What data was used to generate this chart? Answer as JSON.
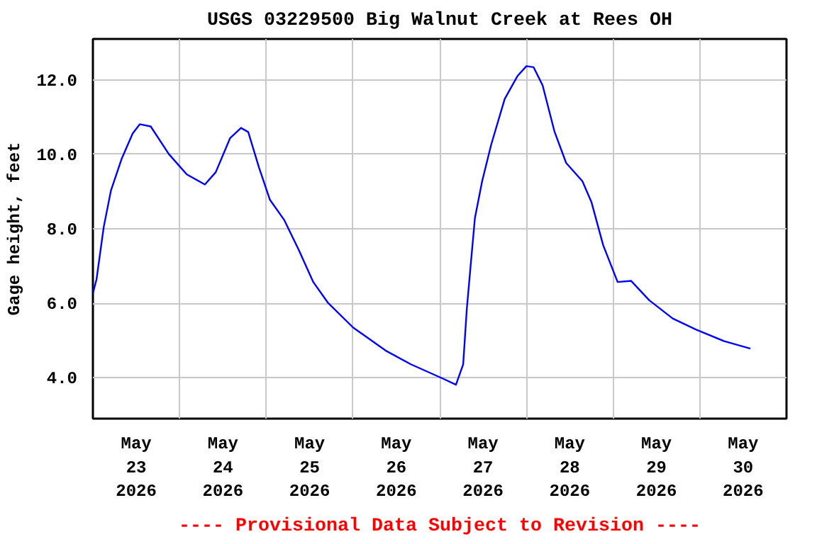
{
  "chart_data": {
    "type": "line",
    "title": "USGS 03229500 Big Walnut Creek at Rees OH",
    "ylabel": "Gage height, feet",
    "annotations": [
      "---- Provisional Data Subject to Revision ----"
    ],
    "x": [
      "2026-05-23T00:00",
      "2026-05-23T01:00",
      "2026-05-23T03:00",
      "2026-05-23T05:00",
      "2026-05-23T08:00",
      "2026-05-23T11:00",
      "2026-05-23T13:00",
      "2026-05-23T16:00",
      "2026-05-23T21:00",
      "2026-05-24T02:00",
      "2026-05-24T07:00",
      "2026-05-24T10:00",
      "2026-05-24T14:00",
      "2026-05-24T17:00",
      "2026-05-24T19:00",
      "2026-05-24T22:00",
      "2026-05-25T01:00",
      "2026-05-25T05:00",
      "2026-05-25T09:00",
      "2026-05-25T13:00",
      "2026-05-25T17:00",
      "2026-05-26T00:00",
      "2026-05-26T09:00",
      "2026-05-26T16:00",
      "2026-05-27T01:00",
      "2026-05-27T04:30",
      "2026-05-27T06:30",
      "2026-05-27T07:30",
      "2026-05-27T08:30",
      "2026-05-27T09:45",
      "2026-05-27T11:45",
      "2026-05-27T14:15",
      "2026-05-27T18:00",
      "2026-05-27T21:30",
      "2026-05-28T00:00",
      "2026-05-28T02:00",
      "2026-05-28T04:30",
      "2026-05-28T07:45",
      "2026-05-28T11:00",
      "2026-05-28T15:30",
      "2026-05-28T18:00",
      "2026-05-28T21:15",
      "2026-05-29T01:15",
      "2026-05-29T05:00",
      "2026-05-29T10:00",
      "2026-05-29T16:30",
      "2026-05-29T23:00",
      "2026-05-30T06:45",
      "2026-05-30T14:00"
    ],
    "series": [
      {
        "color": "#0000ff",
        "values": [
          6.27,
          6.64,
          8.05,
          9.03,
          9.89,
          10.56,
          10.81,
          10.75,
          10.01,
          9.46,
          9.19,
          9.52,
          10.44,
          10.71,
          10.6,
          9.64,
          8.78,
          8.23,
          7.43,
          6.57,
          6.02,
          5.35,
          4.73,
          4.36,
          3.97,
          3.81,
          4.36,
          5.84,
          6.94,
          8.29,
          9.28,
          10.26,
          11.49,
          12.1,
          12.37,
          12.34,
          11.85,
          10.62,
          9.77,
          9.28,
          8.72,
          7.56,
          6.57,
          6.6,
          6.08,
          5.59,
          5.29,
          4.98,
          4.78
        ]
      }
    ],
    "xlim": [
      "2026-05-23T00:00",
      "2026-05-31T00:00"
    ],
    "xticks": [
      {
        "value": "2026-05-23T12:00",
        "label": "May\n23\n2026"
      },
      {
        "value": "2026-05-24T12:00",
        "label": "May\n24\n2026"
      },
      {
        "value": "2026-05-25T12:00",
        "label": "May\n25\n2026"
      },
      {
        "value": "2026-05-26T12:00",
        "label": "May\n26\n2026"
      },
      {
        "value": "2026-05-27T12:00",
        "label": "May\n27\n2026"
      },
      {
        "value": "2026-05-28T12:00",
        "label": "May\n28\n2026"
      },
      {
        "value": "2026-05-29T12:00",
        "label": "May\n29\n2026"
      },
      {
        "value": "2026-05-30T12:00",
        "label": "May\n30\n2026"
      },
      {
        "value": "2026-05-24T00:00",
        "label": null
      },
      {
        "value": "2026-05-25T00:00",
        "label": null
      },
      {
        "value": "2026-05-26T00:00",
        "label": null
      },
      {
        "value": "2026-05-27T00:00",
        "label": null
      },
      {
        "value": "2026-05-28T00:00",
        "label": null
      },
      {
        "value": "2026-05-29T00:00",
        "label": null
      },
      {
        "value": "2026-05-30T00:00",
        "label": null
      }
    ],
    "ylim": [
      2.9,
      13.1
    ],
    "yticks": [
      {
        "value": 4,
        "label": "4.0"
      },
      {
        "value": 6,
        "label": "6.0"
      },
      {
        "value": 8,
        "label": "8.0"
      },
      {
        "value": 10,
        "label": "10.0"
      },
      {
        "value": 12,
        "label": "12.0"
      }
    ],
    "grid": true,
    "marker": "none",
    "line_style": "solid"
  }
}
